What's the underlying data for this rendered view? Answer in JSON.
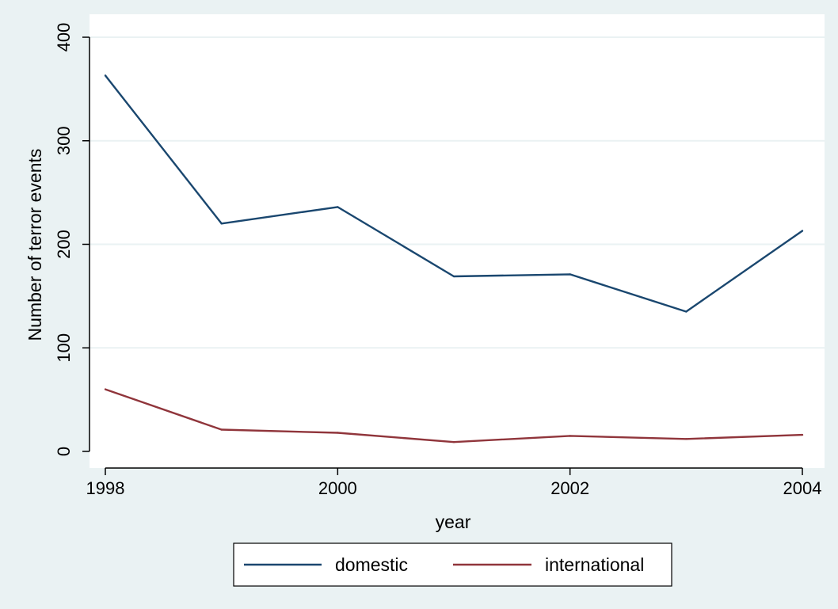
{
  "chart_data": {
    "type": "line",
    "xlabel": "year",
    "ylabel": "Number of terror events",
    "x": [
      1998,
      1999,
      2000,
      2001,
      2002,
      2003,
      2004
    ],
    "series": [
      {
        "name": "domestic",
        "color": "#1a476f",
        "values": [
          363,
          220,
          236,
          169,
          171,
          135,
          213
        ]
      },
      {
        "name": "international",
        "color": "#90353b",
        "values": [
          60,
          21,
          18,
          9,
          15,
          12,
          16
        ]
      }
    ],
    "xlim": [
      1998,
      2004
    ],
    "ylim": [
      0,
      400
    ],
    "xticks": [
      1998,
      2000,
      2002,
      2004
    ],
    "yticks": [
      0,
      100,
      200,
      300,
      400
    ],
    "grid": true,
    "legend_position": "bottom"
  },
  "colors": {
    "background": "#eaf2f3",
    "plot_area": "#ffffff",
    "gridline": "#eaf2f3",
    "axis": "#000000"
  }
}
